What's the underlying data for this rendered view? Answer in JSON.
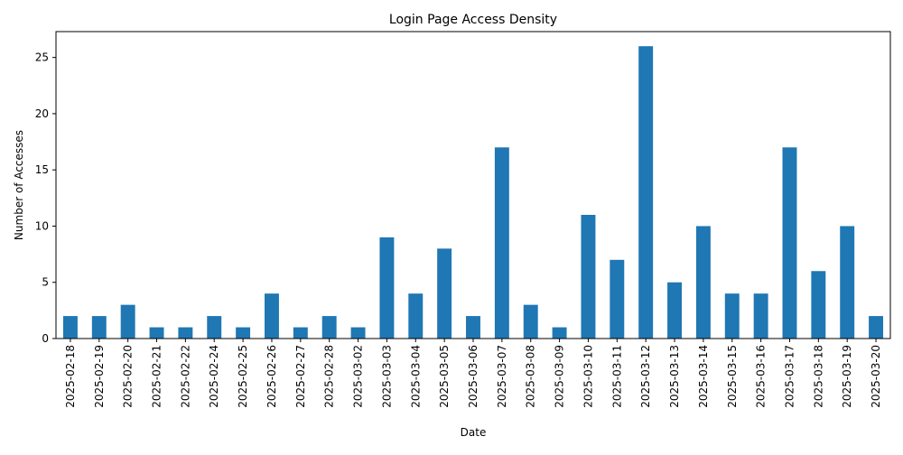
{
  "chart_data": {
    "type": "bar",
    "title": "Login Page Access Density",
    "xlabel": "Date",
    "ylabel": "Number of Accesses",
    "ylim": [
      0,
      27.3
    ],
    "yticks": [
      0,
      5,
      10,
      15,
      20,
      25
    ],
    "grid": false,
    "bar_color": "#1f77b4",
    "categories": [
      "2025-02-18",
      "2025-02-19",
      "2025-02-20",
      "2025-02-21",
      "2025-02-22",
      "2025-02-24",
      "2025-02-25",
      "2025-02-26",
      "2025-02-27",
      "2025-02-28",
      "2025-03-02",
      "2025-03-03",
      "2025-03-04",
      "2025-03-05",
      "2025-03-06",
      "2025-03-07",
      "2025-03-08",
      "2025-03-09",
      "2025-03-10",
      "2025-03-11",
      "2025-03-12",
      "2025-03-13",
      "2025-03-14",
      "2025-03-15",
      "2025-03-16",
      "2025-03-17",
      "2025-03-18",
      "2025-03-19",
      "2025-03-20"
    ],
    "values": [
      2,
      2,
      3,
      1,
      1,
      2,
      1,
      4,
      1,
      2,
      1,
      9,
      4,
      8,
      2,
      17,
      3,
      1,
      11,
      7,
      26,
      5,
      10,
      4,
      4,
      17,
      6,
      10,
      2
    ]
  }
}
